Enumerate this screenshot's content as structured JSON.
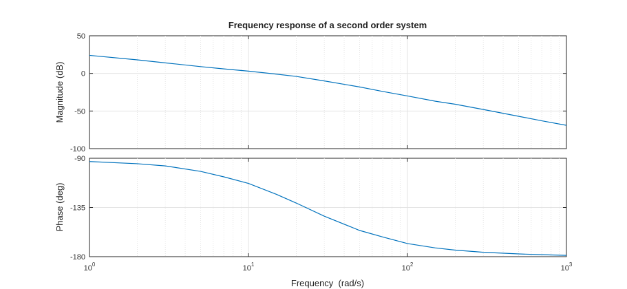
{
  "chart_data": {
    "type": "line",
    "title": "Frequency response of a second order system",
    "xlabel": "Frequency  (rad/s)",
    "xscale": "log",
    "xlim": [
      1,
      1000
    ],
    "x_ticks": [
      {
        "base": "10",
        "exp": "0"
      },
      {
        "base": "10",
        "exp": "1"
      },
      {
        "base": "10",
        "exp": "2"
      },
      {
        "base": "10",
        "exp": "3"
      }
    ],
    "grid": true,
    "line_color": "#0072BD",
    "panels": [
      {
        "ylabel": "Magnitude (dB)",
        "ylim": [
          -100,
          50
        ],
        "yticks": [
          "50",
          "0",
          "-50",
          "-100"
        ],
        "series": [
          {
            "x": [
              1,
              2,
              3,
              5,
              7,
              10,
              15,
              20,
              30,
              50,
              70,
              100,
              150,
              200,
              300,
              500,
              700,
              1000
            ],
            "y": [
              24,
              18,
              14,
              9,
              6,
              3,
              -1,
              -4,
              -10,
              -18,
              -24,
              -30,
              -37,
              -41,
              -48,
              -57,
              -63,
              -69
            ]
          }
        ]
      },
      {
        "ylabel": "Phase (deg)",
        "ylim": [
          -180,
          -90
        ],
        "yticks": [
          "-90",
          "-135",
          "-180"
        ],
        "series": [
          {
            "x": [
              1,
              2,
              3,
              5,
              7,
              10,
              15,
              20,
              30,
              50,
              70,
              100,
              150,
              200,
              300,
              500,
              700,
              1000
            ],
            "y": [
              -93,
              -95,
              -97,
              -102,
              -107,
              -113,
              -123,
              -131,
              -143,
              -156,
              -162,
              -168,
              -172,
              -174,
              -176,
              -177.5,
              -178.2,
              -178.8
            ]
          }
        ]
      }
    ]
  }
}
